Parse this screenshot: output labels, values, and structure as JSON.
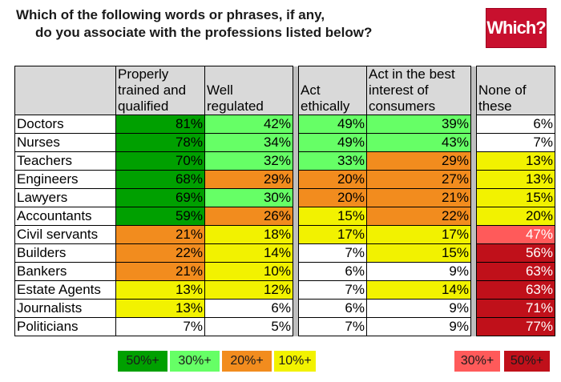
{
  "title": {
    "line1": "Which of the following words or phrases, if any,",
    "line2": "do you associate with the professions listed below?"
  },
  "logo": {
    "text": "Which?"
  },
  "colors": {
    "green_dark": "#00a000",
    "green_light": "#66ff66",
    "orange": "#f28c1e",
    "yellow": "#f2f200",
    "red_light": "#ff5a5a",
    "red_dark": "#c0101a"
  },
  "chart_data": {
    "type": "table",
    "columns": [
      "Properly trained and qualified",
      "Well regulated",
      "Act ethically",
      "Act in the best interest of consumers",
      "None of these"
    ],
    "rows": [
      {
        "profession": "Doctors",
        "values": [
          "81%",
          "42%",
          "49%",
          "39%",
          "6%"
        ]
      },
      {
        "profession": "Nurses",
        "values": [
          "78%",
          "34%",
          "49%",
          "43%",
          "7%"
        ]
      },
      {
        "profession": "Teachers",
        "values": [
          "70%",
          "32%",
          "33%",
          "29%",
          "13%"
        ]
      },
      {
        "profession": "Engineers",
        "values": [
          "68%",
          "29%",
          "20%",
          "27%",
          "13%"
        ]
      },
      {
        "profession": "Lawyers",
        "values": [
          "69%",
          "30%",
          "20%",
          "21%",
          "15%"
        ]
      },
      {
        "profession": "Accountants",
        "values": [
          "59%",
          "26%",
          "15%",
          "22%",
          "20%"
        ]
      },
      {
        "profession": "Civil servants",
        "values": [
          "21%",
          "18%",
          "17%",
          "17%",
          "47%"
        ]
      },
      {
        "profession": "Builders",
        "values": [
          "22%",
          "14%",
          "7%",
          "15%",
          "56%"
        ]
      },
      {
        "profession": "Bankers",
        "values": [
          "21%",
          "10%",
          "6%",
          "9%",
          "63%"
        ]
      },
      {
        "profession": "Estate Agents",
        "values": [
          "13%",
          "12%",
          "7%",
          "14%",
          "63%"
        ]
      },
      {
        "profession": "Journalists",
        "values": [
          "13%",
          "6%",
          "6%",
          "9%",
          "71%"
        ]
      },
      {
        "profession": "Politicians",
        "values": [
          "7%",
          "5%",
          "7%",
          "9%",
          "77%"
        ]
      }
    ],
    "legend": {
      "positive": [
        "50%+",
        "30%+",
        "20%+",
        "10%+"
      ],
      "negative": [
        "30%+",
        "50%+"
      ]
    }
  }
}
